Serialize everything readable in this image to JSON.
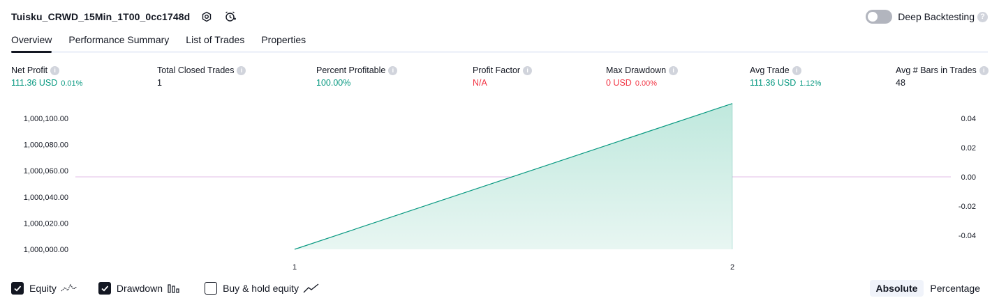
{
  "header": {
    "title": "Tuisku_CRWD_15Min_1T00_0cc1748d",
    "deep_backtesting_label": "Deep Backtesting",
    "help_glyph": "?"
  },
  "tabs": [
    {
      "label": "Overview",
      "active": true
    },
    {
      "label": "Performance Summary",
      "active": false
    },
    {
      "label": "List of Trades",
      "active": false
    },
    {
      "label": "Properties",
      "active": false
    }
  ],
  "metrics": [
    {
      "label": "Net Profit",
      "value": "111.36 USD",
      "pct": "0.01%",
      "color": "green"
    },
    {
      "label": "Total Closed Trades",
      "value": "1",
      "pct": "",
      "color": "dark"
    },
    {
      "label": "Percent Profitable",
      "value": "100.00%",
      "pct": "",
      "color": "green"
    },
    {
      "label": "Profit Factor",
      "value": "N/A",
      "pct": "",
      "color": "red"
    },
    {
      "label": "Max Drawdown",
      "value": "0 USD",
      "pct": "0.00%",
      "color": "red"
    },
    {
      "label": "Avg Trade",
      "value": "111.36 USD",
      "pct": "1.12%",
      "color": "green"
    },
    {
      "label": "Avg # Bars in Trades",
      "value": "48",
      "pct": "",
      "color": "dark"
    }
  ],
  "chart_data": {
    "type": "area",
    "x": [
      1,
      2
    ],
    "series": [
      {
        "values": [
          1000000.0,
          1000111.36
        ],
        "color": "#089981",
        "fill": "#c9ece3"
      }
    ],
    "y_ticks_left": [
      "1,000,100.00",
      "1,000,080.00",
      "1,000,060.00",
      "1,000,040.00",
      "1,000,020.00",
      "1,000,000.00"
    ],
    "y_ticks_right": [
      "0.04",
      "0.02",
      "0.00",
      "-0.02",
      "-0.04"
    ],
    "x_ticks": [
      "1",
      "2"
    ],
    "ylim": [
      1000000.0,
      1000100.0
    ],
    "y2lim": [
      -0.04,
      0.04
    ],
    "zero_line_color": "#e1bee7"
  },
  "legend": [
    {
      "label": "Equity",
      "checked": true,
      "icon": "equity-line-icon"
    },
    {
      "label": "Drawdown",
      "checked": true,
      "icon": "drawdown-bars-icon"
    },
    {
      "label": "Buy & hold equity",
      "checked": false,
      "icon": "buy-hold-line-icon"
    }
  ],
  "mode": {
    "absolute_label": "Absolute",
    "percentage_label": "Percentage",
    "selected": "Absolute"
  },
  "info_glyph": "i"
}
